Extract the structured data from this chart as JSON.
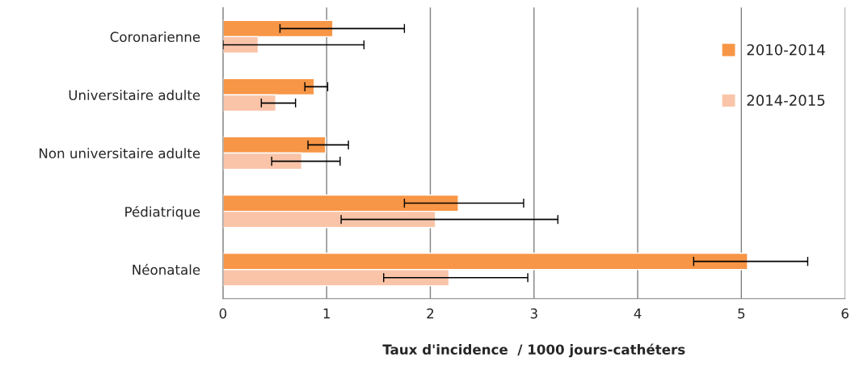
{
  "chart_data": {
    "type": "bar",
    "orientation": "horizontal",
    "xlabel": "Taux d'incidence  / 1000 jours-cathéters",
    "categories": [
      "Coronarienne",
      "Universitaire adulte",
      "Non universitaire adulte",
      "Pédiatrique",
      "Néonatale"
    ],
    "series": [
      {
        "name": "2010-2014",
        "color": "#f79646",
        "values": [
          1.06,
          0.88,
          0.99,
          2.27,
          5.06
        ],
        "errors": [
          [
            0.55,
            1.75
          ],
          [
            0.79,
            1.01
          ],
          [
            0.82,
            1.21
          ],
          [
            1.75,
            2.9
          ],
          [
            4.54,
            5.64
          ]
        ]
      },
      {
        "name": "2014-2015",
        "color": "#fac4a8",
        "values": [
          0.34,
          0.51,
          0.76,
          2.05,
          2.18
        ],
        "errors": [
          [
            0,
            1.36
          ],
          [
            0.37,
            0.7
          ],
          [
            0.47,
            1.13
          ],
          [
            1.14,
            3.23
          ],
          [
            1.55,
            2.94
          ]
        ]
      }
    ],
    "xlim": [
      0,
      6
    ],
    "xticks": [
      0,
      1,
      2,
      3,
      4,
      5,
      6
    ],
    "grid": "x",
    "legend": "top right"
  }
}
